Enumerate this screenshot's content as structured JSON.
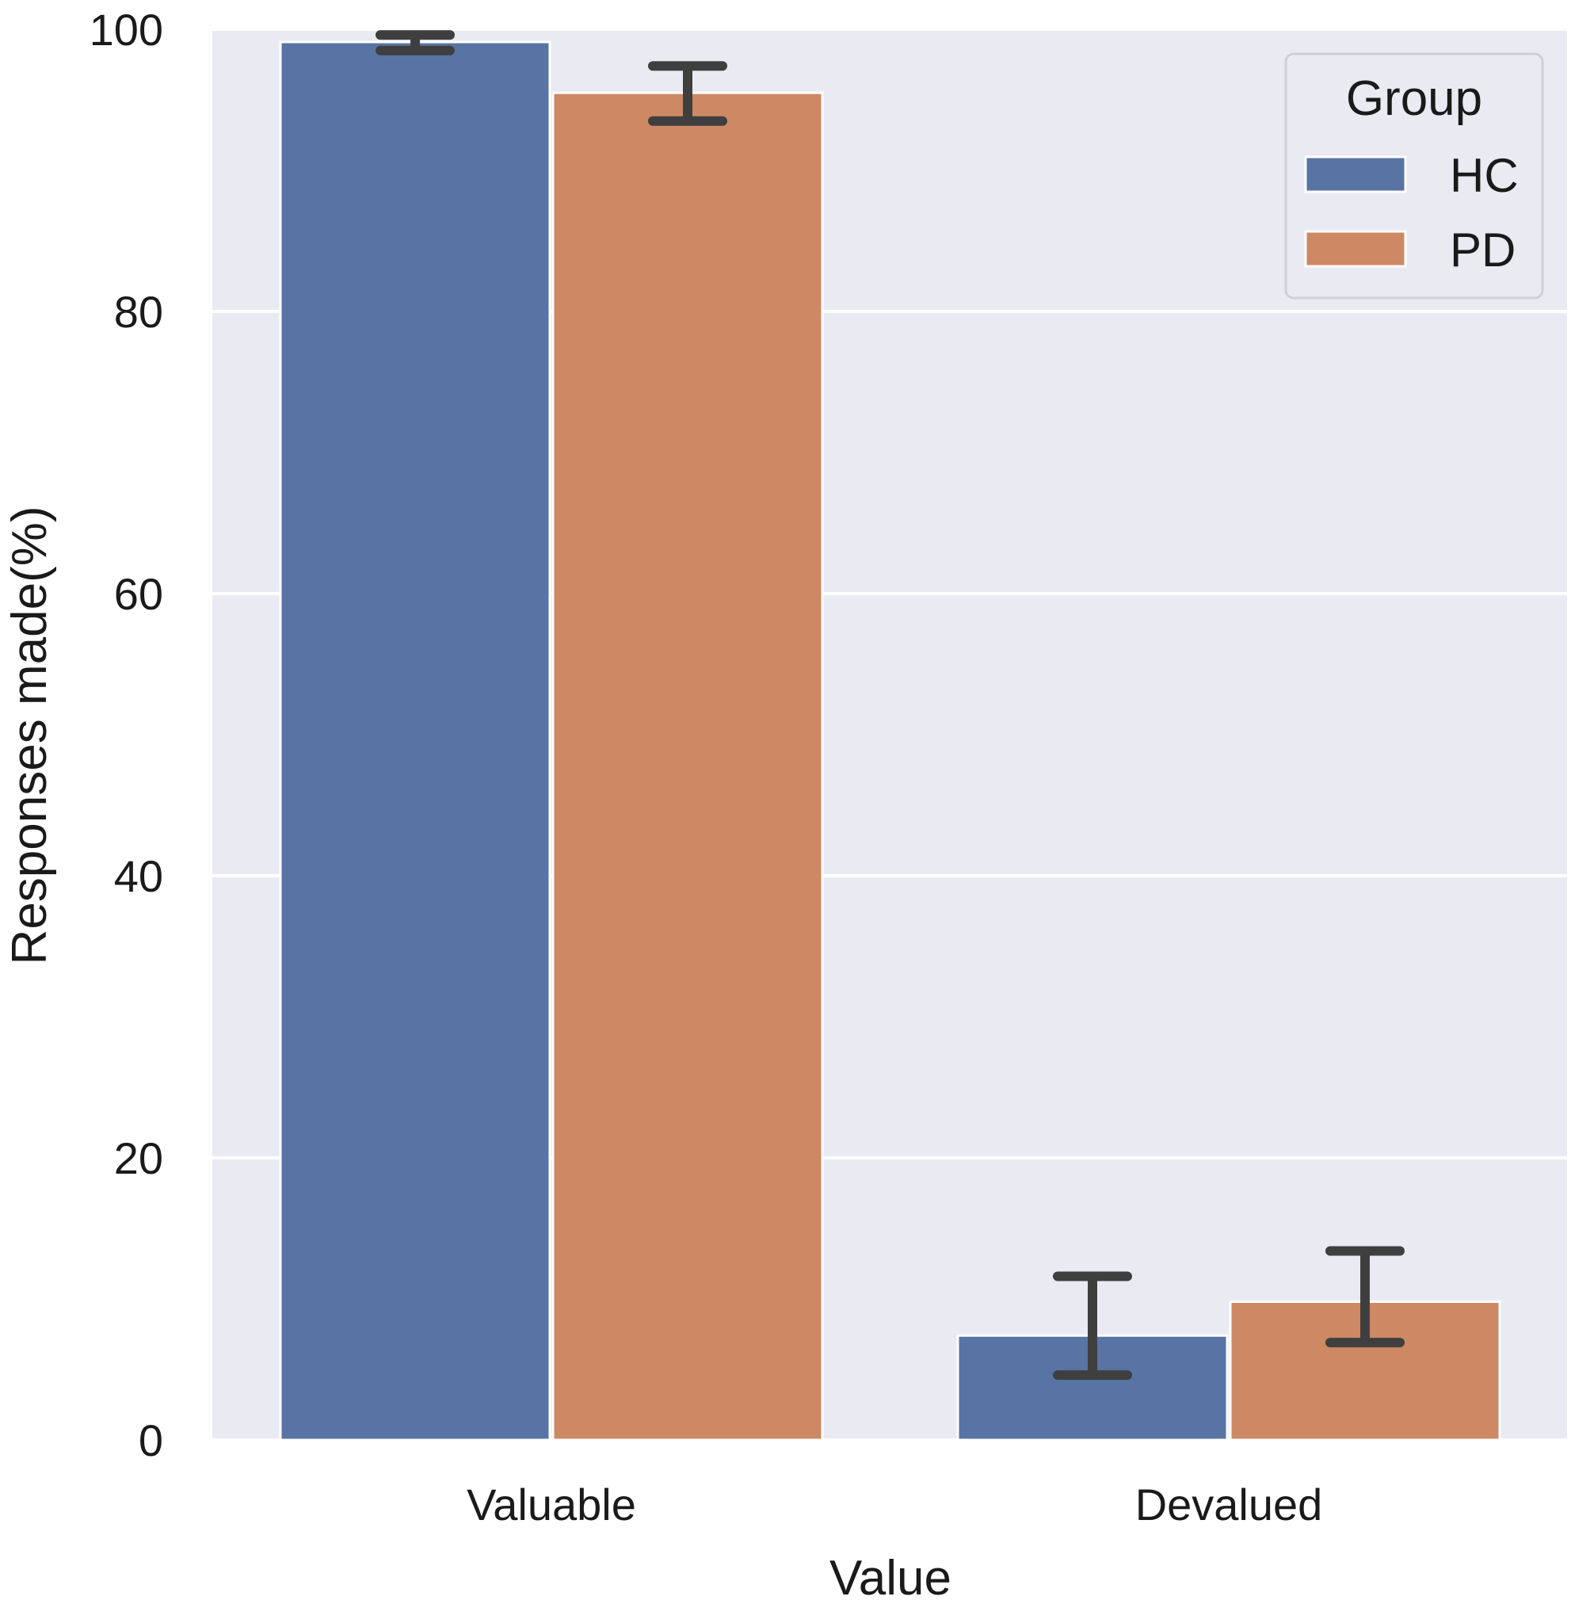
{
  "chart_data": {
    "type": "bar",
    "title": "",
    "xlabel": "Value",
    "ylabel": "Responses made(%)",
    "categories": [
      "Valuable",
      "Devalued"
    ],
    "ylim": [
      0,
      100
    ],
    "yticks": [
      "0",
      "20",
      "40",
      "60",
      "80",
      "100"
    ],
    "grid": true,
    "legend": {
      "title": "Group",
      "position": "top-right"
    },
    "series": [
      {
        "name": "HC",
        "color": "#5874a4",
        "values": [
          99.1,
          7.4
        ],
        "error_low": [
          98.5,
          4.6
        ],
        "error_high": [
          99.6,
          11.6
        ]
      },
      {
        "name": "PD",
        "color": "#cc8963",
        "values": [
          95.5,
          9.8
        ],
        "error_low": [
          93.5,
          6.9
        ],
        "error_high": [
          97.4,
          13.4
        ]
      }
    ],
    "colors": {
      "background": "#eaeaf2",
      "grid": "#ffffff",
      "error_bar": "#3f3f3f"
    }
  }
}
